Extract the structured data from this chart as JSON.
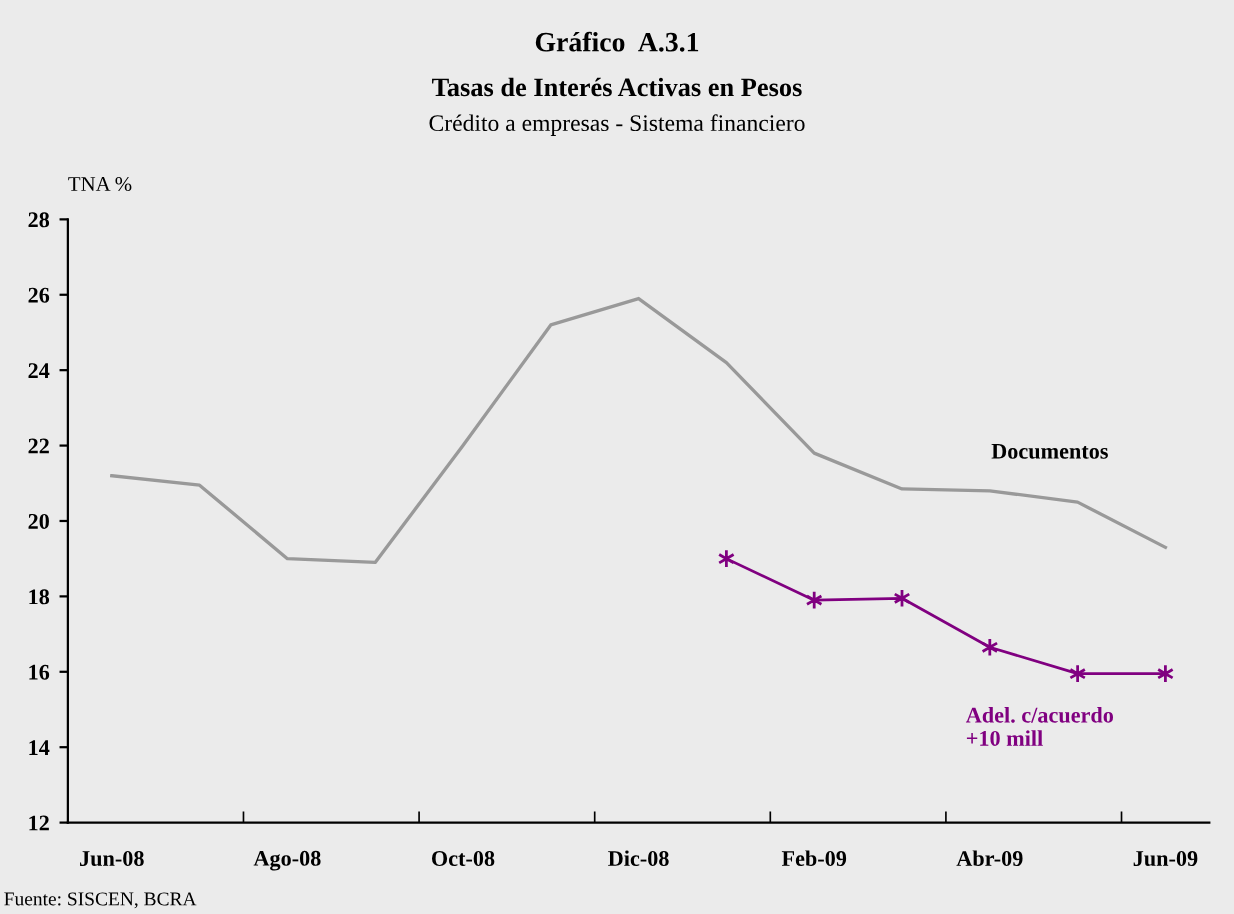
{
  "chart_data": {
    "type": "line",
    "title": "Gráfico  A.3.1",
    "subtitle": "Tasas de Interés Activas en Pesos\nCrédito a empresas - Sistema financiero",
    "ylabel": "TNA %",
    "categories": [
      "Jun-08",
      null,
      "Ago-08",
      null,
      "Oct-08",
      null,
      "Dic-08",
      null,
      "Feb-09",
      null,
      "Abr-09",
      null,
      "Jun-09"
    ],
    "series": [
      {
        "name": "Documentos",
        "color": "#999999",
        "marker": "none",
        "values": [
          21.2,
          20.95,
          19.0,
          18.9,
          22.0,
          25.2,
          25.9,
          24.2,
          21.8,
          20.85,
          20.8,
          20.5,
          19.3
        ]
      },
      {
        "name": "Adel. c/acuerdo\n+10 mill",
        "color": "#800080",
        "marker": "cross",
        "values": [
          null,
          null,
          null,
          null,
          null,
          null,
          null,
          19.0,
          17.9,
          17.95,
          16.65,
          15.95,
          15.95
        ]
      }
    ],
    "ylim": [
      12,
      28
    ],
    "yticks": [
      12,
      14,
      16,
      18,
      20,
      22,
      24,
      26,
      28
    ],
    "grid": false,
    "legend": false,
    "annotations": [
      "Fuente: SISCEN, BCRA"
    ]
  }
}
